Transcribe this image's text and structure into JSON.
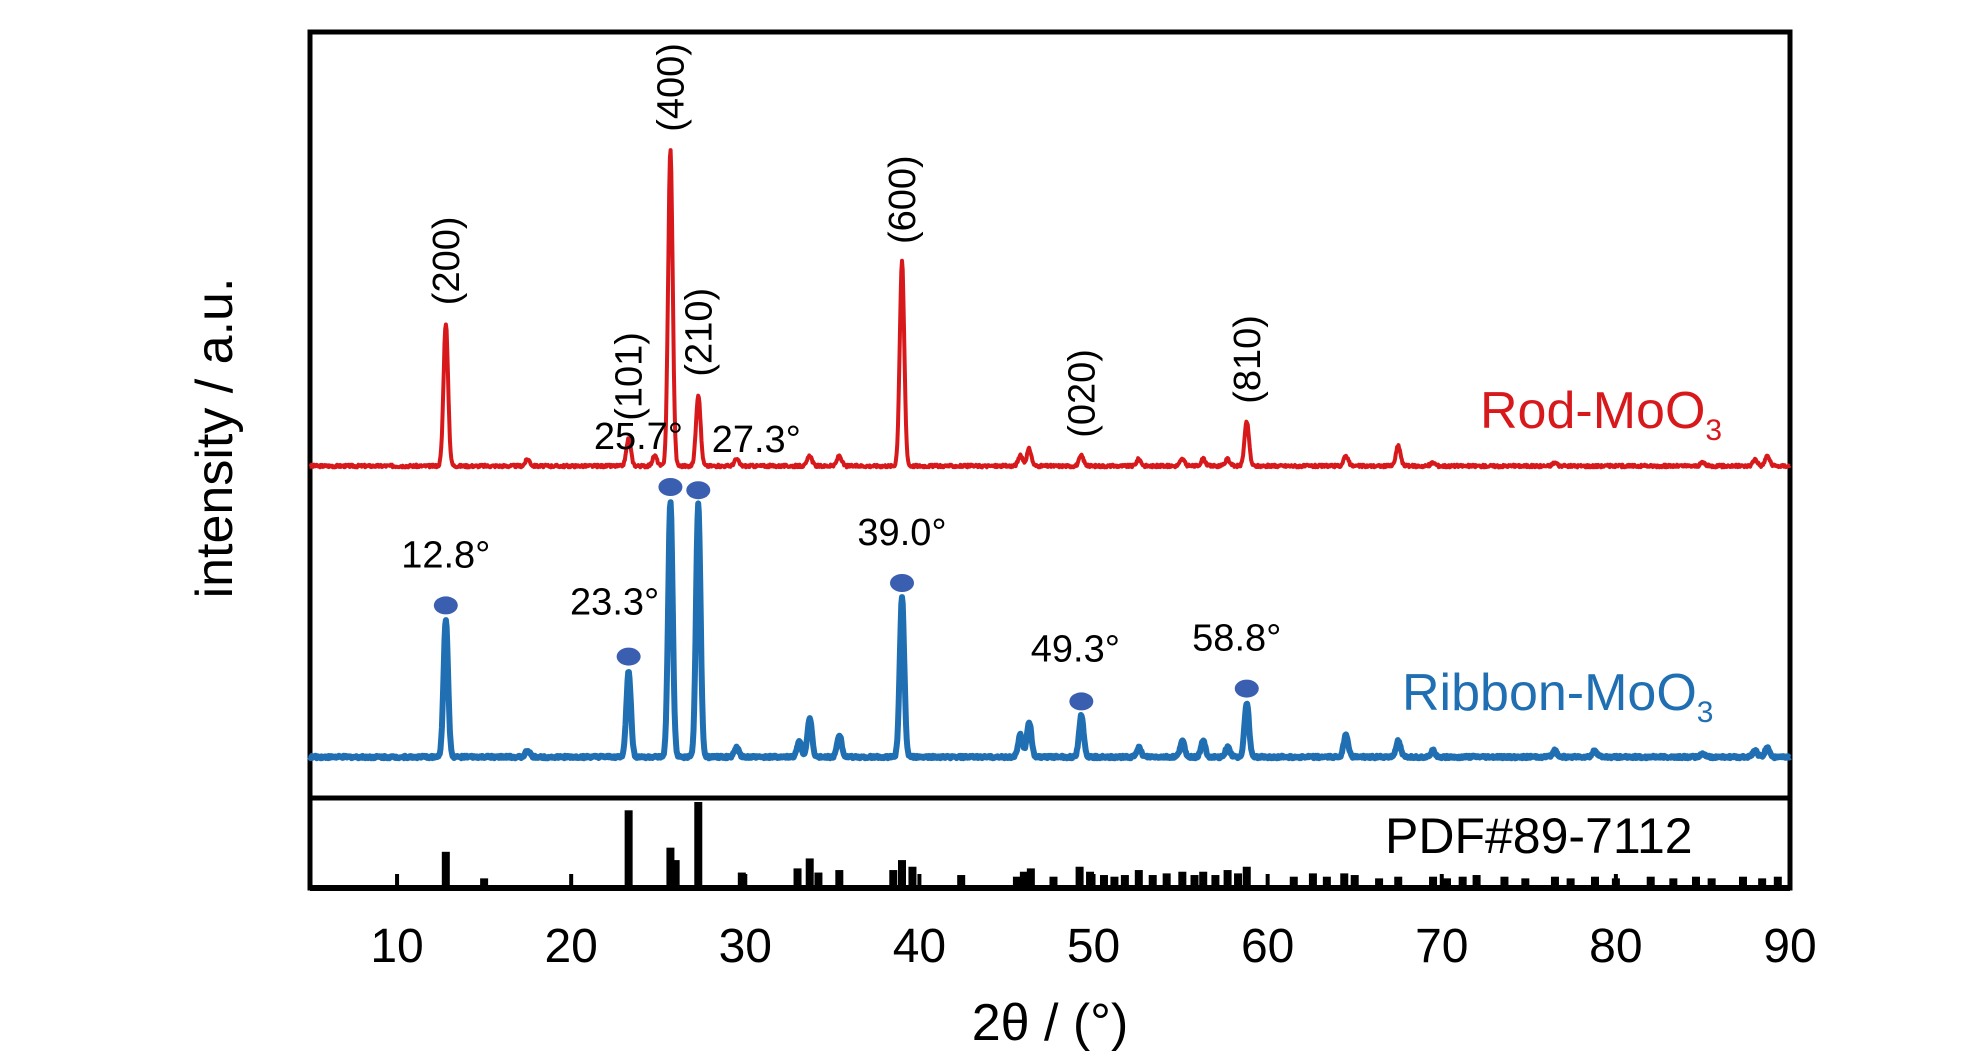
{
  "chart_data": {
    "type": "line",
    "xlabel": "2θ / (°)",
    "ylabel": "intensity / a.u.",
    "xlim": [
      5,
      90
    ],
    "xticks": [
      10,
      20,
      30,
      40,
      50,
      60,
      70,
      80,
      90
    ],
    "grid": false,
    "series": [
      {
        "name": "Rod-MoO3",
        "label_main": "Rod-MoO",
        "label_sub": "3",
        "color": "#d7191c",
        "baseline": 0,
        "peaks": [
          {
            "x": 12.8,
            "h": 0.42
          },
          {
            "x": 17.5,
            "h": 0.02
          },
          {
            "x": 23.3,
            "h": 0.08
          },
          {
            "x": 24.8,
            "h": 0.03
          },
          {
            "x": 25.7,
            "h": 0.93
          },
          {
            "x": 27.3,
            "h": 0.21
          },
          {
            "x": 29.5,
            "h": 0.02
          },
          {
            "x": 33.7,
            "h": 0.03
          },
          {
            "x": 35.4,
            "h": 0.03
          },
          {
            "x": 39.0,
            "h": 0.6
          },
          {
            "x": 45.8,
            "h": 0.03
          },
          {
            "x": 46.3,
            "h": 0.05
          },
          {
            "x": 49.3,
            "h": 0.03
          },
          {
            "x": 52.6,
            "h": 0.02
          },
          {
            "x": 55.1,
            "h": 0.02
          },
          {
            "x": 56.3,
            "h": 0.02
          },
          {
            "x": 57.7,
            "h": 0.02
          },
          {
            "x": 58.8,
            "h": 0.13
          },
          {
            "x": 64.5,
            "h": 0.03
          },
          {
            "x": 67.5,
            "h": 0.06
          },
          {
            "x": 69.5,
            "h": 0.01
          },
          {
            "x": 76.5,
            "h": 0.01
          },
          {
            "x": 85.0,
            "h": 0.01
          },
          {
            "x": 88.0,
            "h": 0.02
          },
          {
            "x": 88.7,
            "h": 0.03
          }
        ],
        "hkl_labels": [
          {
            "x": 12.8,
            "text": "(200)"
          },
          {
            "x": 23.3,
            "text": "(101)"
          },
          {
            "x": 25.7,
            "text": "(400)"
          },
          {
            "x": 27.3,
            "text": "(210)"
          },
          {
            "x": 39.0,
            "text": "(600)"
          },
          {
            "x": 49.3,
            "text": "(020)"
          },
          {
            "x": 58.8,
            "text": "(810)"
          }
        ]
      },
      {
        "name": "Ribbon-MoO3",
        "label_main": "Ribbon-MoO",
        "label_sub": "3",
        "color": "#1f6fb2",
        "baseline": 0,
        "peaks": [
          {
            "x": 12.8,
            "h": 0.43
          },
          {
            "x": 17.5,
            "h": 0.02
          },
          {
            "x": 23.3,
            "h": 0.27
          },
          {
            "x": 25.7,
            "h": 0.8
          },
          {
            "x": 27.3,
            "h": 0.79
          },
          {
            "x": 29.5,
            "h": 0.03
          },
          {
            "x": 33.1,
            "h": 0.05
          },
          {
            "x": 33.7,
            "h": 0.12
          },
          {
            "x": 35.4,
            "h": 0.07
          },
          {
            "x": 39.0,
            "h": 0.5
          },
          {
            "x": 45.8,
            "h": 0.07
          },
          {
            "x": 46.3,
            "h": 0.11
          },
          {
            "x": 49.3,
            "h": 0.13
          },
          {
            "x": 52.6,
            "h": 0.03
          },
          {
            "x": 55.1,
            "h": 0.05
          },
          {
            "x": 56.3,
            "h": 0.05
          },
          {
            "x": 57.7,
            "h": 0.03
          },
          {
            "x": 58.8,
            "h": 0.17
          },
          {
            "x": 64.5,
            "h": 0.07
          },
          {
            "x": 67.5,
            "h": 0.05
          },
          {
            "x": 69.5,
            "h": 0.02
          },
          {
            "x": 76.5,
            "h": 0.02
          },
          {
            "x": 78.8,
            "h": 0.02
          },
          {
            "x": 85.0,
            "h": 0.01
          },
          {
            "x": 88.0,
            "h": 0.02
          },
          {
            "x": 88.7,
            "h": 0.03
          }
        ],
        "peak_labels": [
          {
            "x": 12.8,
            "text": "12.8°"
          },
          {
            "x": 23.3,
            "text": "23.3°"
          },
          {
            "x": 25.7,
            "text": "25.7°"
          },
          {
            "x": 27.3,
            "text": "27.3°"
          },
          {
            "x": 39.0,
            "text": "39.0°"
          },
          {
            "x": 49.3,
            "text": "49.3°"
          },
          {
            "x": 58.8,
            "text": "58.8°"
          }
        ]
      }
    ],
    "reference": {
      "name": "PDF#89-7112",
      "lines": [
        {
          "x": 12.8,
          "h": 0.4
        },
        {
          "x": 15.0,
          "h": 0.08
        },
        {
          "x": 23.3,
          "h": 0.9
        },
        {
          "x": 25.7,
          "h": 0.45
        },
        {
          "x": 26.0,
          "h": 0.3
        },
        {
          "x": 27.3,
          "h": 1.0
        },
        {
          "x": 29.8,
          "h": 0.15
        },
        {
          "x": 33.0,
          "h": 0.2
        },
        {
          "x": 33.7,
          "h": 0.32
        },
        {
          "x": 34.2,
          "h": 0.15
        },
        {
          "x": 35.4,
          "h": 0.18
        },
        {
          "x": 38.5,
          "h": 0.18
        },
        {
          "x": 39.0,
          "h": 0.3
        },
        {
          "x": 39.6,
          "h": 0.22
        },
        {
          "x": 42.4,
          "h": 0.12
        },
        {
          "x": 45.6,
          "h": 0.1
        },
        {
          "x": 46.0,
          "h": 0.16
        },
        {
          "x": 46.4,
          "h": 0.2
        },
        {
          "x": 47.7,
          "h": 0.1
        },
        {
          "x": 49.2,
          "h": 0.22
        },
        {
          "x": 49.8,
          "h": 0.16
        },
        {
          "x": 50.6,
          "h": 0.12
        },
        {
          "x": 51.2,
          "h": 0.1
        },
        {
          "x": 51.8,
          "h": 0.12
        },
        {
          "x": 52.6,
          "h": 0.18
        },
        {
          "x": 53.4,
          "h": 0.12
        },
        {
          "x": 54.2,
          "h": 0.14
        },
        {
          "x": 55.1,
          "h": 0.16
        },
        {
          "x": 55.8,
          "h": 0.12
        },
        {
          "x": 56.3,
          "h": 0.16
        },
        {
          "x": 57.0,
          "h": 0.12
        },
        {
          "x": 57.7,
          "h": 0.18
        },
        {
          "x": 58.3,
          "h": 0.14
        },
        {
          "x": 58.8,
          "h": 0.22
        },
        {
          "x": 61.5,
          "h": 0.1
        },
        {
          "x": 62.6,
          "h": 0.14
        },
        {
          "x": 63.4,
          "h": 0.1
        },
        {
          "x": 64.4,
          "h": 0.14
        },
        {
          "x": 65.0,
          "h": 0.12
        },
        {
          "x": 66.4,
          "h": 0.08
        },
        {
          "x": 67.5,
          "h": 0.1
        },
        {
          "x": 69.5,
          "h": 0.1
        },
        {
          "x": 70.3,
          "h": 0.08
        },
        {
          "x": 71.2,
          "h": 0.1
        },
        {
          "x": 72.0,
          "h": 0.12
        },
        {
          "x": 73.6,
          "h": 0.1
        },
        {
          "x": 74.8,
          "h": 0.08
        },
        {
          "x": 76.5,
          "h": 0.1
        },
        {
          "x": 77.4,
          "h": 0.08
        },
        {
          "x": 78.8,
          "h": 0.1
        },
        {
          "x": 80.0,
          "h": 0.08
        },
        {
          "x": 82.0,
          "h": 0.1
        },
        {
          "x": 83.3,
          "h": 0.08
        },
        {
          "x": 84.6,
          "h": 0.1
        },
        {
          "x": 85.5,
          "h": 0.08
        },
        {
          "x": 87.3,
          "h": 0.1
        },
        {
          "x": 88.4,
          "h": 0.08
        },
        {
          "x": 89.3,
          "h": 0.1
        }
      ]
    },
    "marker_color": "#3a5fb0"
  }
}
